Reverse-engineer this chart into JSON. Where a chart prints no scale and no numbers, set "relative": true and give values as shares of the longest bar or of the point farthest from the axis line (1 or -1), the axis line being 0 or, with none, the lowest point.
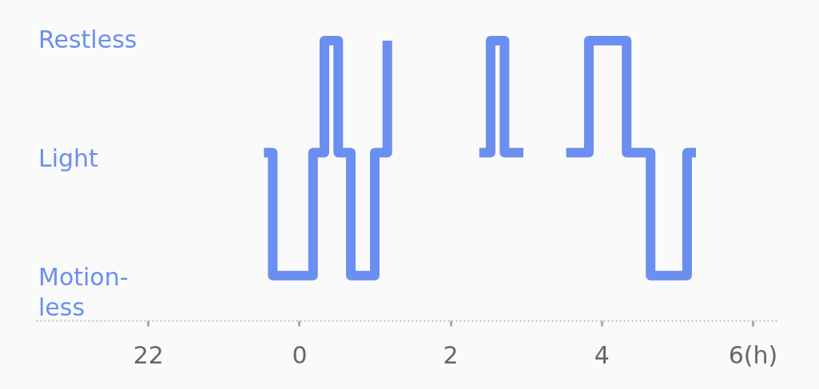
{
  "chart_data": {
    "type": "step",
    "relative": true,
    "x": [
      "--01-01T23:32",
      "--01-01T23:39",
      "--01-02T00:11",
      "--01-02T00:20",
      "--01-02T00:31",
      "--01-02T00:41",
      "--01-02T01:00",
      "--01-02T01:10",
      "--01-02T01:18",
      "--01-02T02:23",
      "--01-02T02:32",
      "--01-02T02:43",
      "--01-02T02:58",
      "--01-02T03:12",
      "--01-02T03:32",
      "--01-02T03:50",
      "--01-02T04:20",
      "--01-02T04:39",
      "--01-02T05:08",
      "--01-02T05:15"
    ],
    "series": [
      {
        "color": "#6a8ff0",
        "values": [
          0.6,
          0.16,
          0.6,
          1,
          0.6,
          0.16,
          0.6,
          1,
          null,
          0.6,
          1,
          0.6,
          0.6,
          null,
          0.6,
          1,
          0.6,
          0.16,
          0.6,
          0.6
        ]
      }
    ],
    "annotations": [
      "Restless",
      "Light",
      "Motion-less"
    ],
    "xlim": [
      "--01-01T20:31",
      "--01-02T06:21"
    ],
    "xticks": [
      {
        "value": "--01-01T22:00",
        "label": "22"
      },
      {
        "value": "--01-02T00:00",
        "label": "0"
      },
      {
        "value": "--01-02T02:00",
        "label": "2"
      },
      {
        "value": "--01-02T04:00",
        "label": "4"
      },
      {
        "value": "--01-02T06:00",
        "label": "6(h)"
      }
    ],
    "grid": false,
    "line_style": "solid",
    "marker": "none"
  }
}
